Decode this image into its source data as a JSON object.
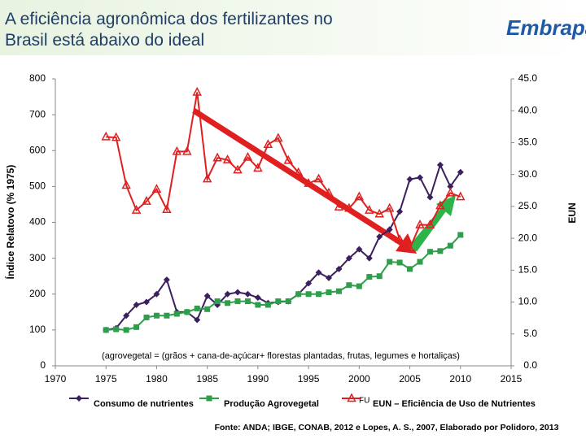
{
  "header": {
    "title_lines": [
      "A eficiência agronômica dos fertilizantes no",
      "Brasil está abaixo do ideal"
    ],
    "logo": "Embrapa"
  },
  "chart_data": {
    "type": "line",
    "y_label": "Índice Relatovo (% 1975)",
    "y2_label": "EUN",
    "annotation": "(agrovegetal = (grãos + cana-de-açúcar+ florestas plantadas, frutas, legumes e hortaliças)",
    "legend_marker_label": "FU",
    "source": "Fonte: ANDA; IBGE, CONAB, 2012 e Lopes, A. S., 2007, Elaborado por Polidoro, 2013",
    "x": [
      1975,
      1976,
      1977,
      1978,
      1979,
      1980,
      1981,
      1982,
      1983,
      1984,
      1985,
      1986,
      1987,
      1988,
      1989,
      1990,
      1991,
      1992,
      1993,
      1994,
      1995,
      1996,
      1997,
      1998,
      1999,
      2000,
      2001,
      2002,
      2003,
      2004,
      2005,
      2006,
      2007,
      2008,
      2009,
      2010
    ],
    "xlim": [
      1970,
      2015
    ],
    "xticks": [
      1970,
      1975,
      1980,
      1985,
      1990,
      1995,
      2000,
      2005,
      2010,
      2015
    ],
    "ylim": [
      0,
      800
    ],
    "yticks": [
      0,
      100,
      200,
      300,
      400,
      500,
      600,
      700,
      800
    ],
    "y2lim": [
      0,
      45
    ],
    "y2ticks": [
      {
        "value": 0,
        "label": "0.0"
      },
      {
        "value": 5,
        "label": "5.0"
      },
      {
        "value": 10,
        "label": "10.0"
      },
      {
        "value": 15,
        "label": "15.0"
      },
      {
        "value": 20,
        "label": "20.0"
      },
      {
        "value": 25,
        "label": "25.0"
      },
      {
        "value": 30,
        "label": "30.0"
      },
      {
        "value": 35,
        "label": "35.0"
      },
      {
        "value": 40,
        "label": "40.0"
      },
      {
        "value": 45,
        "label": "45.0"
      }
    ],
    "series": [
      {
        "name": "Consumo de nutrientes",
        "color": "#3b1f5e",
        "marker": "diamond",
        "values": [
          100,
          105,
          140,
          170,
          178,
          200,
          240,
          150,
          150,
          128,
          195,
          170,
          200,
          205,
          200,
          190,
          175,
          178,
          180,
          200,
          230,
          260,
          245,
          270,
          300,
          325,
          300,
          360,
          380,
          430,
          520,
          525,
          470,
          560,
          500,
          540
        ]
      },
      {
        "name": "Produção Agrovegetal",
        "color": "#2e9e4a",
        "marker": "square",
        "values": [
          100,
          102,
          100,
          108,
          135,
          140,
          140,
          145,
          150,
          160,
          158,
          180,
          175,
          180,
          180,
          170,
          170,
          180,
          180,
          200,
          200,
          200,
          205,
          208,
          225,
          222,
          248,
          250,
          290,
          288,
          270,
          290,
          318,
          320,
          335,
          365
        ]
      },
      {
        "name": "EUN – Eficiência de Uso de Nutrientes",
        "color": "#e02020",
        "marker": "triangle",
        "axis": "y2",
        "values": [
          35.9,
          35.8,
          28.3,
          24.4,
          25.8,
          27.7,
          24.5,
          33.6,
          33.6,
          42.9,
          29.3,
          32.6,
          32.3,
          30.7,
          32.7,
          31.0,
          34.7,
          35.7,
          32.2,
          30.3,
          28.6,
          29.3,
          27.1,
          24.9,
          24.7,
          26.5,
          24.4,
          23.8,
          24.7,
          19.8,
          18.4,
          22.1,
          22.1,
          25.1,
          27.1,
          26.5
        ]
      }
    ]
  }
}
